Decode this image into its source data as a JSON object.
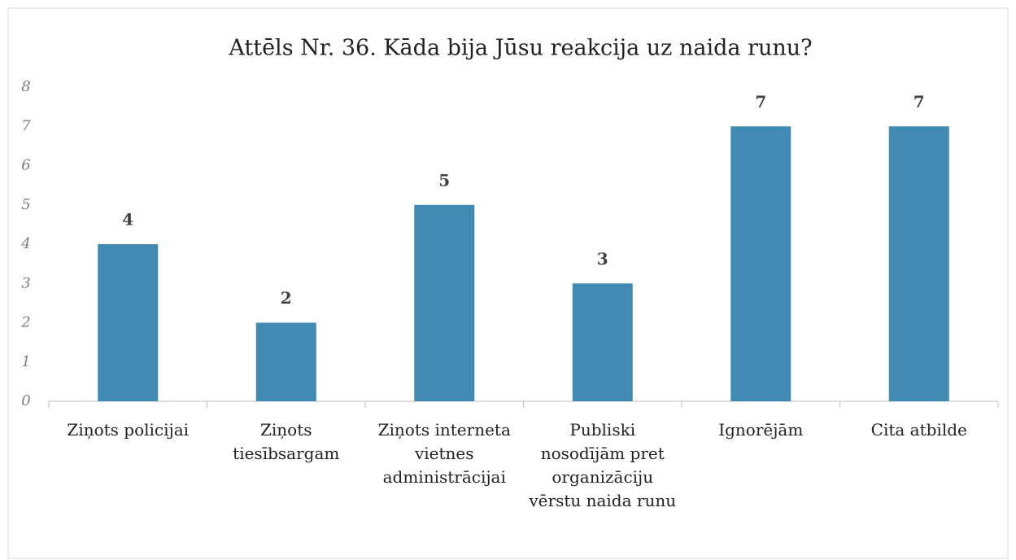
{
  "chart_data": {
    "type": "bar",
    "title": "Attēls Nr. 36. Kāda bija Jūsu reakcija uz naida runu?",
    "categories": [
      "Ziņots policijai",
      "Ziņots tiesībsargam",
      "Ziņots interneta vietnes administrācijai",
      "Publiski nosodījām pret organizāciju vērstu naida runu",
      "Ignorējām",
      "Cita atbilde"
    ],
    "values": [
      4,
      2,
      5,
      3,
      7,
      7
    ],
    "color": "#418ab3",
    "ylim": [
      0,
      8
    ],
    "yticks": [
      0,
      1,
      2,
      3,
      4,
      5,
      6,
      7,
      8
    ],
    "grid": false
  }
}
